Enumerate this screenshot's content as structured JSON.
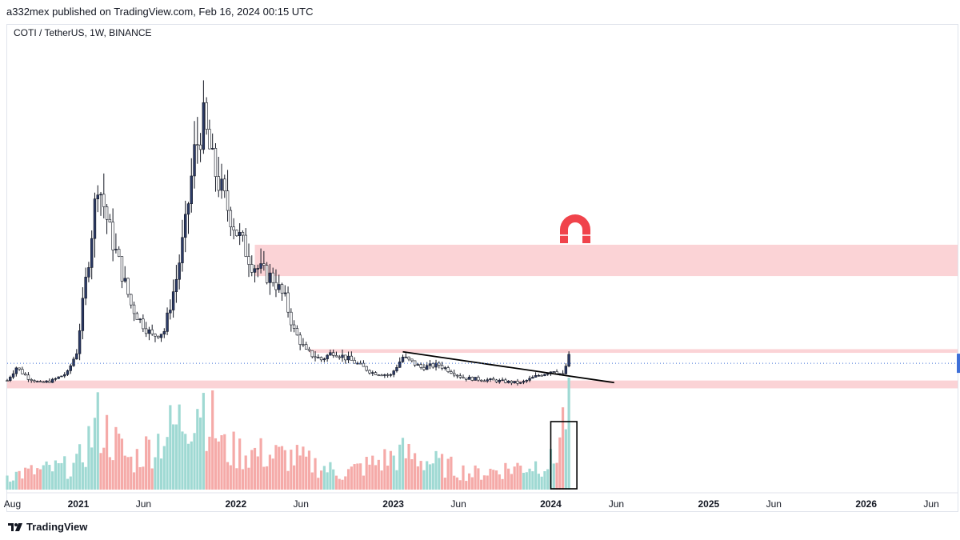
{
  "header": {
    "publish_line": "a332mex published on TradingView.com, Feb 16, 2024 00:15 UTC",
    "symbol_line": "COTI / TetherUS, 1W, BINANCE"
  },
  "footer": {
    "brand": "TradingView"
  },
  "colors": {
    "up": "#2b3a67",
    "down": "#131722",
    "zone": "#fbd3d6",
    "vol_up": "#9fd9d3",
    "vol_down": "#f5aaa8",
    "magnet": "#f0434b",
    "price_line": "#3e6fd8"
  },
  "chart_data": {
    "type": "candlestick",
    "symbol": "COTI / TetherUS",
    "interval": "1W",
    "exchange": "BINANCE",
    "x_ticks": [
      {
        "label": "Aug",
        "date": "2020-08",
        "bold": false
      },
      {
        "label": "2021",
        "date": "2021-01",
        "bold": true
      },
      {
        "label": "Jun",
        "date": "2021-06",
        "bold": false
      },
      {
        "label": "2022",
        "date": "2022-01",
        "bold": true
      },
      {
        "label": "Jun",
        "date": "2022-06",
        "bold": false
      },
      {
        "label": "2023",
        "date": "2023-01",
        "bold": true
      },
      {
        "label": "Jun",
        "date": "2023-06",
        "bold": false
      },
      {
        "label": "2024",
        "date": "2024-01",
        "bold": true
      },
      {
        "label": "Jun",
        "date": "2024-06",
        "bold": false
      },
      {
        "label": "2025",
        "date": "2025-01",
        "bold": true
      },
      {
        "label": "Jun",
        "date": "2025-06",
        "bold": false
      },
      {
        "label": "2026",
        "date": "2026-01",
        "bold": true
      },
      {
        "label": "Jun",
        "date": "2026-06",
        "bold": false
      }
    ],
    "x_range": [
      "2020-07-20",
      "2026-08-01"
    ],
    "y_range": [
      0.0,
      0.72
    ],
    "price_keypoints": [
      [
        "2020-07-20",
        0.045
      ],
      [
        "2020-08-10",
        0.07
      ],
      [
        "2020-09-07",
        0.05
      ],
      [
        "2020-10-05",
        0.04
      ],
      [
        "2020-11-02",
        0.045
      ],
      [
        "2020-12-07",
        0.06
      ],
      [
        "2020-12-28",
        0.1
      ],
      [
        "2021-01-25",
        0.28
      ],
      [
        "2021-02-15",
        0.43
      ],
      [
        "2021-03-15",
        0.33
      ],
      [
        "2021-04-05",
        0.27
      ],
      [
        "2021-05-03",
        0.19
      ],
      [
        "2021-05-24",
        0.16
      ],
      [
        "2021-06-21",
        0.13
      ],
      [
        "2021-07-19",
        0.14
      ],
      [
        "2021-08-16",
        0.24
      ],
      [
        "2021-09-06",
        0.34
      ],
      [
        "2021-09-27",
        0.48
      ],
      [
        "2021-10-18",
        0.54
      ],
      [
        "2021-11-08",
        0.46
      ],
      [
        "2021-12-06",
        0.39
      ],
      [
        "2022-01-03",
        0.33
      ],
      [
        "2022-02-07",
        0.27
      ],
      [
        "2022-03-07",
        0.25
      ],
      [
        "2022-03-28",
        0.24
      ],
      [
        "2022-04-25",
        0.2
      ],
      [
        "2022-05-16",
        0.14
      ],
      [
        "2022-06-13",
        0.1
      ],
      [
        "2022-07-18",
        0.085
      ],
      [
        "2022-08-15",
        0.1
      ],
      [
        "2022-10-03",
        0.08
      ],
      [
        "2022-11-14",
        0.06
      ],
      [
        "2022-12-26",
        0.055
      ],
      [
        "2023-01-23",
        0.09
      ],
      [
        "2023-03-06",
        0.07
      ],
      [
        "2023-04-17",
        0.075
      ],
      [
        "2023-06-12",
        0.05
      ],
      [
        "2023-08-21",
        0.045
      ],
      [
        "2023-10-23",
        0.04
      ],
      [
        "2023-12-04",
        0.055
      ],
      [
        "2024-01-08",
        0.065
      ],
      [
        "2024-01-29",
        0.055
      ],
      [
        "2024-02-12",
        0.09
      ]
    ],
    "annotations": {
      "supply_zone": {
        "y_low": 0.245,
        "y_high": 0.305,
        "x_start": "2022-02-14"
      },
      "minor_zone": {
        "y_low": 0.098,
        "y_high": 0.105,
        "x_start": "2022-06-20"
      },
      "demand_zone": {
        "y_low": 0.03,
        "y_high": 0.045,
        "x_start": "2020-07-20"
      },
      "trendline": {
        "start": [
          "2023-01-23",
          0.1
        ],
        "end": [
          "2024-05-27",
          0.041
        ]
      },
      "volume_highlight": {
        "x_start": "2024-01-01",
        "x_end": "2024-02-12"
      },
      "last_price": 0.078
    },
    "volume_keypoints": [
      [
        "2020-07-20",
        0.18
      ],
      [
        "2020-12-28",
        0.3
      ],
      [
        "2021-02-15",
        0.85
      ],
      [
        "2021-05-03",
        0.35
      ],
      [
        "2021-09-06",
        0.9
      ],
      [
        "2021-10-11",
        1.2
      ],
      [
        "2021-12-06",
        0.5
      ],
      [
        "2022-05-16",
        0.4
      ],
      [
        "2022-09-05",
        0.2
      ],
      [
        "2023-01-23",
        0.45
      ],
      [
        "2023-07-03",
        0.2
      ],
      [
        "2024-01-08",
        0.35
      ],
      [
        "2024-02-05",
        1.0
      ]
    ]
  }
}
